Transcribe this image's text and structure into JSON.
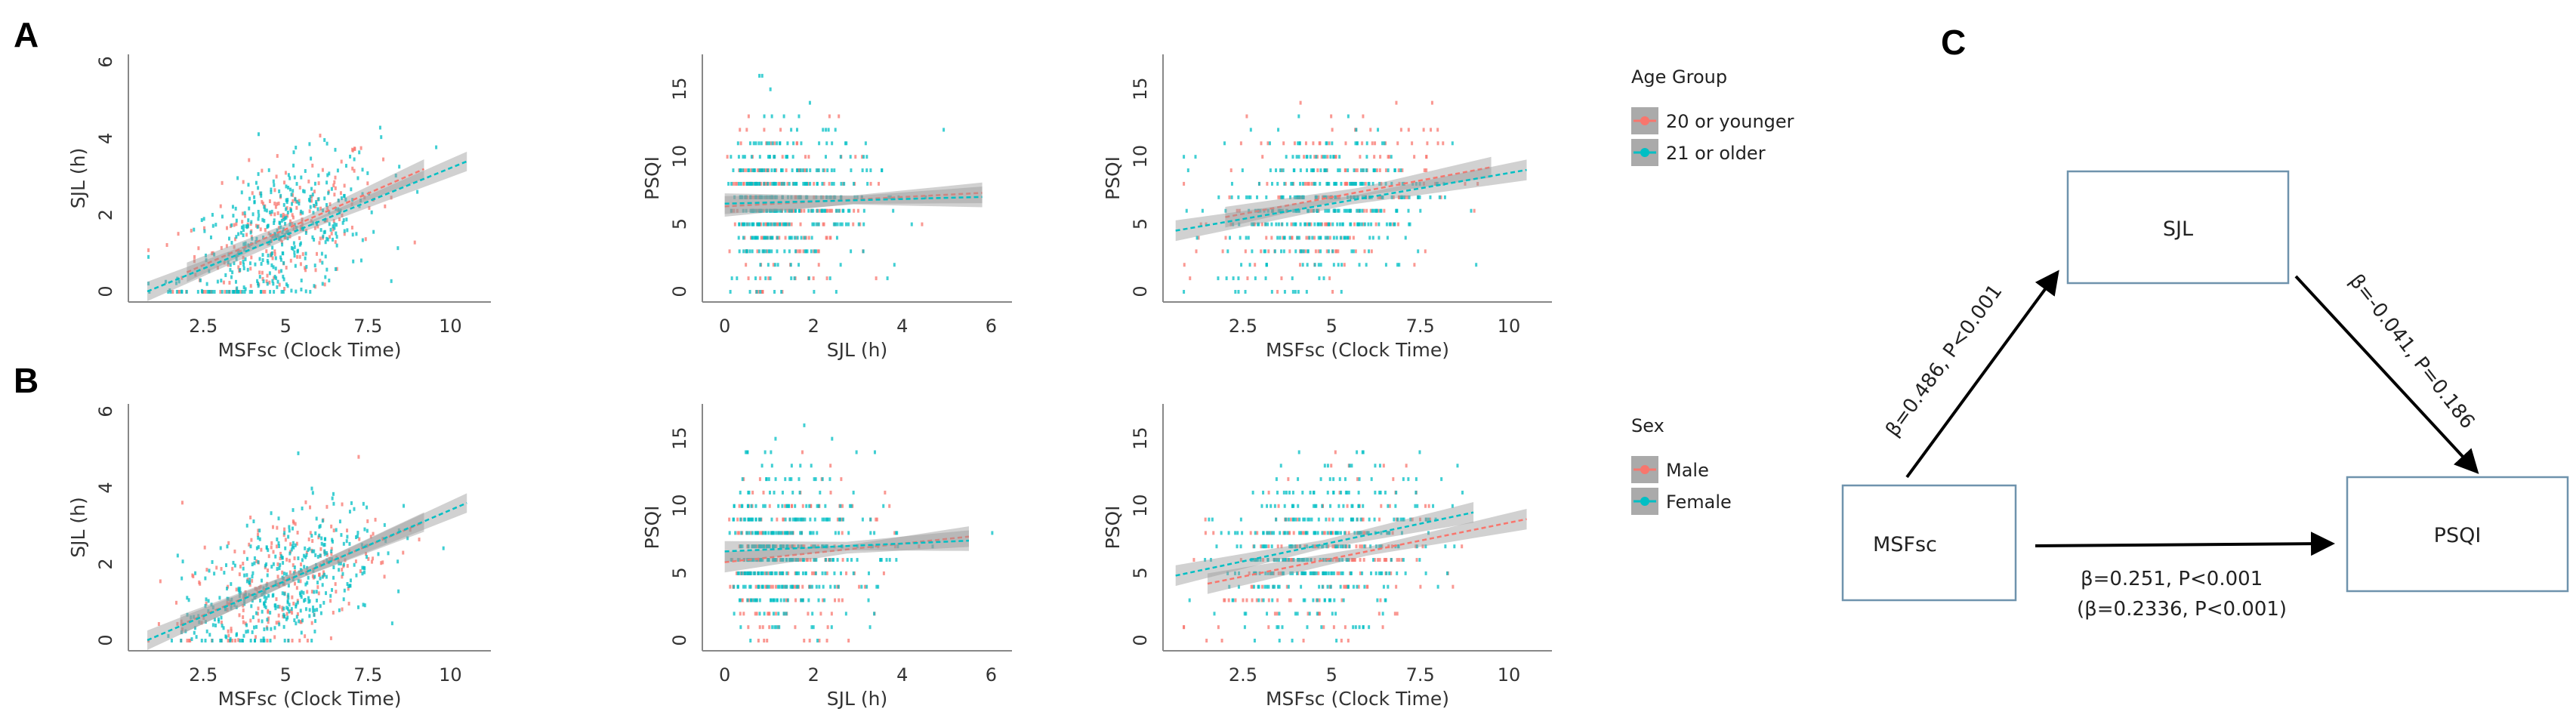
{
  "panel_labels": {
    "a": "A",
    "b": "B",
    "c": "C"
  },
  "legends": [
    {
      "row": "A",
      "title": "Age Group",
      "items": [
        {
          "label": "20 or younger",
          "color": "#F8766D"
        },
        {
          "label": "21 or older",
          "color": "#00BFC4"
        }
      ]
    },
    {
      "row": "B",
      "title": "Sex",
      "items": [
        {
          "label": "Male",
          "color": "#F8766D"
        },
        {
          "label": "Female",
          "color": "#00BFC4"
        }
      ]
    }
  ],
  "chart_data": [
    {
      "type": "scatter",
      "row": "A",
      "col": 0,
      "xlabel": "MSFsc (Clock Time)",
      "ylabel": "SJL (h)",
      "xlim": [
        0.5,
        11
      ],
      "ylim": [
        0,
        6
      ],
      "xticks": [
        "2.5",
        "5",
        "7.5",
        "10"
      ],
      "yticks": [
        "0",
        "2",
        "4",
        "6"
      ],
      "y_integer": false,
      "groups": [
        {
          "name": "20 or younger",
          "color": "#F8766D",
          "fit": {
            "x": [
              2.0,
              9.2
            ],
            "y": [
              0.5,
              3.2
            ]
          }
        },
        {
          "name": "21 or older",
          "color": "#00BFC4",
          "fit": {
            "x": [
              0.8,
              10.5
            ],
            "y": [
              0.0,
              3.4
            ]
          }
        }
      ]
    },
    {
      "type": "scatter",
      "row": "A",
      "col": 1,
      "xlabel": "SJL (h)",
      "ylabel": "PSQI",
      "xlim": [
        -0.3,
        6.3
      ],
      "ylim": [
        0,
        17
      ],
      "xticks": [
        "0",
        "2",
        "4",
        "6"
      ],
      "yticks": [
        "0",
        "5",
        "10",
        "15"
      ],
      "y_integer": true,
      "groups": [
        {
          "name": "20 or younger",
          "color": "#F8766D",
          "fit": {
            "x": [
              0,
              5.8
            ],
            "y": [
              6.3,
              7.3
            ]
          }
        },
        {
          "name": "21 or older",
          "color": "#00BFC4",
          "fit": {
            "x": [
              0,
              5.8
            ],
            "y": [
              6.5,
              7.0
            ]
          }
        }
      ]
    },
    {
      "type": "scatter",
      "row": "A",
      "col": 2,
      "xlabel": "MSFsc (Clock Time)",
      "ylabel": "PSQI",
      "xlim": [
        0.5,
        11
      ],
      "ylim": [
        0,
        17
      ],
      "xticks": [
        "2.5",
        "5",
        "7.5",
        "10"
      ],
      "yticks": [
        "0",
        "5",
        "10",
        "15"
      ],
      "y_integer": true,
      "groups": [
        {
          "name": "20 or younger",
          "color": "#F8766D",
          "fit": {
            "x": [
              2.0,
              9.5
            ],
            "y": [
              5.5,
              9.2
            ]
          }
        },
        {
          "name": "21 or older",
          "color": "#00BFC4",
          "fit": {
            "x": [
              0.6,
              10.5
            ],
            "y": [
              4.5,
              9.0
            ]
          }
        }
      ]
    },
    {
      "type": "scatter",
      "row": "B",
      "col": 0,
      "xlabel": "MSFsc (Clock Time)",
      "ylabel": "SJL (h)",
      "xlim": [
        0.5,
        11
      ],
      "ylim": [
        0,
        6
      ],
      "xticks": [
        "2.5",
        "5",
        "7.5",
        "10"
      ],
      "yticks": [
        "0",
        "2",
        "4",
        "6"
      ],
      "y_integer": false,
      "groups": [
        {
          "name": "Male",
          "color": "#F8766D",
          "fit": {
            "x": [
              1.8,
              9.2
            ],
            "y": [
              0.4,
              3.1
            ]
          }
        },
        {
          "name": "Female",
          "color": "#00BFC4",
          "fit": {
            "x": [
              0.8,
              10.5
            ],
            "y": [
              0.0,
              3.6
            ]
          }
        }
      ]
    },
    {
      "type": "scatter",
      "row": "B",
      "col": 1,
      "xlabel": "SJL (h)",
      "ylabel": "PSQI",
      "xlim": [
        -0.3,
        6.3
      ],
      "ylim": [
        0,
        17
      ],
      "xticks": [
        "0",
        "2",
        "4",
        "6"
      ],
      "yticks": [
        "0",
        "5",
        "10",
        "15"
      ],
      "y_integer": true,
      "groups": [
        {
          "name": "Male",
          "color": "#F8766D",
          "fit": {
            "x": [
              0,
              5.5
            ],
            "y": [
              5.8,
              7.7
            ]
          }
        },
        {
          "name": "Female",
          "color": "#00BFC4",
          "fit": {
            "x": [
              0,
              5.5
            ],
            "y": [
              6.6,
              7.4
            ]
          }
        }
      ]
    },
    {
      "type": "scatter",
      "row": "B",
      "col": 2,
      "xlabel": "MSFsc (Clock Time)",
      "ylabel": "PSQI",
      "xlim": [
        0.5,
        11
      ],
      "ylim": [
        0,
        17
      ],
      "xticks": [
        "2.5",
        "5",
        "7.5",
        "10"
      ],
      "yticks": [
        "0",
        "5",
        "10",
        "15"
      ],
      "y_integer": true,
      "groups": [
        {
          "name": "Male",
          "color": "#F8766D",
          "fit": {
            "x": [
              1.5,
              10.5
            ],
            "y": [
              4.2,
              9.0
            ]
          }
        },
        {
          "name": "Female",
          "color": "#00BFC4",
          "fit": {
            "x": [
              0.6,
              9.0
            ],
            "y": [
              4.8,
              9.5
            ]
          }
        }
      ]
    }
  ],
  "mediation_diagram": {
    "nodes": {
      "mediator": "SJL",
      "predictor": "MSFsc",
      "outcome": "PSQI"
    },
    "paths": {
      "a": "β=0.486, P<0.001",
      "b": "β=-0.041, P=0.186",
      "c": "β=0.251, P<0.001",
      "c_prime": "(β=0.2336, P<0.001)"
    }
  }
}
